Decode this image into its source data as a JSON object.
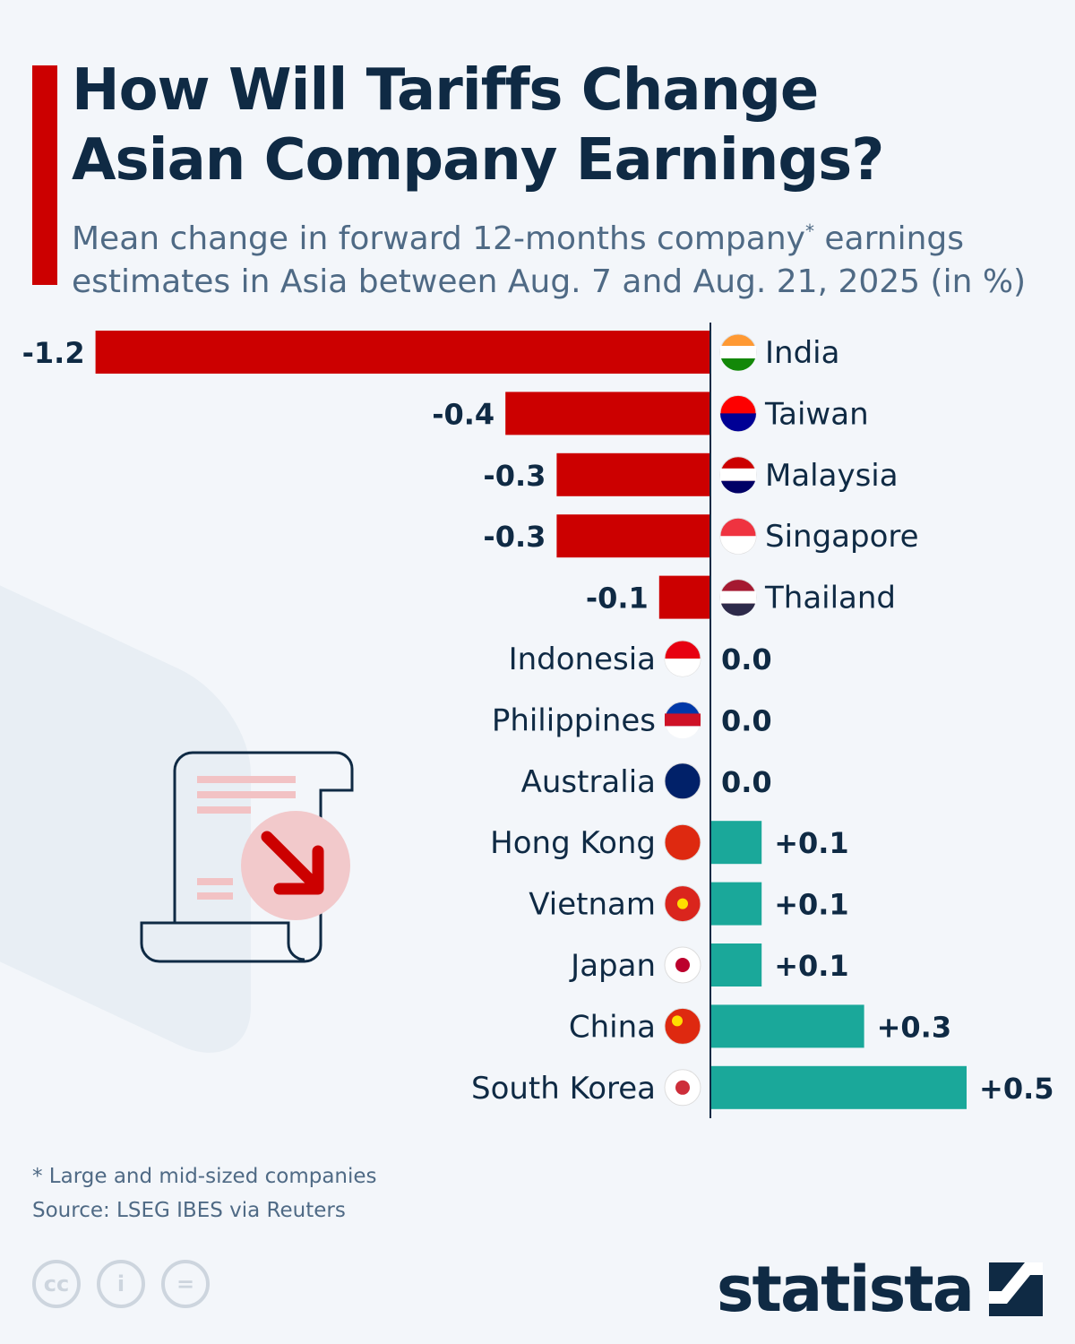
{
  "header": {
    "title_line1": "How Will Tariffs Change",
    "title_line2": "Asian Company Earnings?",
    "subtitle_line1a": "Mean change in forward 12-months company",
    "subtitle_sup": "*",
    "subtitle_line1b": " earnings",
    "subtitle_line2": "estimates in Asia between Aug. 7 and Aug. 21, 2025 (in %)"
  },
  "chart_data": {
    "type": "bar",
    "orientation": "horizontal",
    "xlim": [
      -1.2,
      0.5
    ],
    "categories": [
      "India",
      "Taiwan",
      "Malaysia",
      "Singapore",
      "Thailand",
      "Indonesia",
      "Philippines",
      "Australia",
      "Hong Kong",
      "Vietnam",
      "Japan",
      "China",
      "South Korea"
    ],
    "values": [
      -1.2,
      -0.4,
      -0.3,
      -0.3,
      -0.1,
      0.0,
      0.0,
      0.0,
      0.1,
      0.1,
      0.1,
      0.3,
      0.5
    ],
    "data_labels": [
      "-1.2",
      "-0.4",
      "-0.3",
      "-0.3",
      "-0.1",
      "0.0",
      "0.0",
      "0.0",
      "+0.1",
      "+0.1",
      "+0.1",
      "+0.3",
      "+0.5"
    ],
    "colors": {
      "negative": "#cc0000",
      "positive": "#1aa89a",
      "axis": "#0f2a44"
    }
  },
  "footer": {
    "note": "* Large and mid-sized companies",
    "source": "Source: LSEG IBES via Reuters",
    "brand": "statista"
  }
}
